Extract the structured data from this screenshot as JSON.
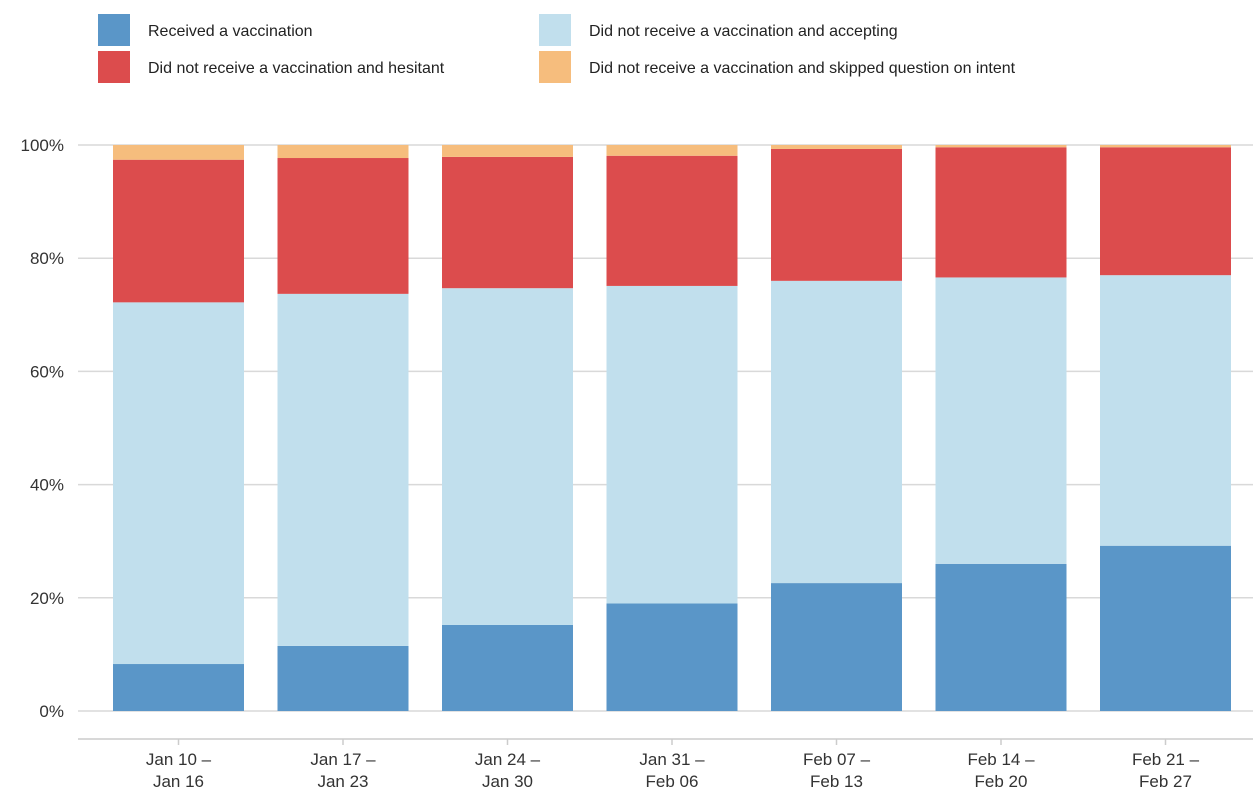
{
  "chart_data": {
    "type": "bar",
    "stacked": true,
    "title": "",
    "xlabel": "",
    "ylabel": "",
    "ylim": [
      0,
      100
    ],
    "y_ticks": [
      0,
      20,
      40,
      60,
      80,
      100
    ],
    "y_tick_labels": [
      "0%",
      "20%",
      "40%",
      "60%",
      "80%",
      "100%"
    ],
    "grid": true,
    "legend_position": "top",
    "categories": [
      [
        "Jan 10 –",
        "Jan 16"
      ],
      [
        "Jan 17 –",
        "Jan 23"
      ],
      [
        "Jan 24 –",
        "Jan 30"
      ],
      [
        "Jan 31 –",
        "Feb 06"
      ],
      [
        "Feb 07 –",
        "Feb 13"
      ],
      [
        "Feb 14 –",
        "Feb 20"
      ],
      [
        "Feb 21 –",
        "Feb 27"
      ]
    ],
    "series": [
      {
        "name": "Received a vaccination",
        "color": "#5a96c8",
        "values": [
          8.3,
          11.5,
          15.2,
          19.0,
          22.6,
          26.0,
          29.2
        ]
      },
      {
        "name": "Did not receive a vaccination and accepting",
        "color": "#c1dfed",
        "values": [
          63.9,
          62.2,
          59.5,
          56.1,
          53.4,
          50.6,
          47.8
        ]
      },
      {
        "name": "Did not receive a vaccination and hesitant",
        "color": "#dc4c4d",
        "values": [
          25.2,
          24.0,
          23.2,
          23.0,
          23.3,
          23.0,
          22.6
        ]
      },
      {
        "name": "Did not receive a vaccination and skipped question on intent",
        "color": "#f6bd7d",
        "values": [
          2.6,
          2.3,
          2.1,
          1.9,
          0.7,
          0.4,
          0.4
        ]
      }
    ],
    "legend_order": [
      0,
      2,
      1,
      3
    ]
  }
}
